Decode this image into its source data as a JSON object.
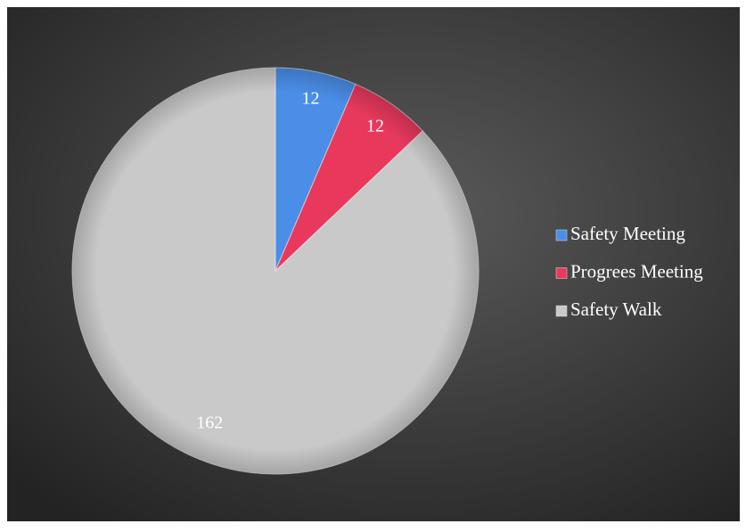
{
  "chart_data": {
    "type": "pie",
    "categories": [
      "Safety Meeting",
      "Progrees Meeting",
      "Safety Walk"
    ],
    "values": [
      12,
      12,
      162
    ],
    "colors": [
      "#4a8ee8",
      "#e8395d",
      "#c9c9c9"
    ],
    "legend": "right"
  }
}
